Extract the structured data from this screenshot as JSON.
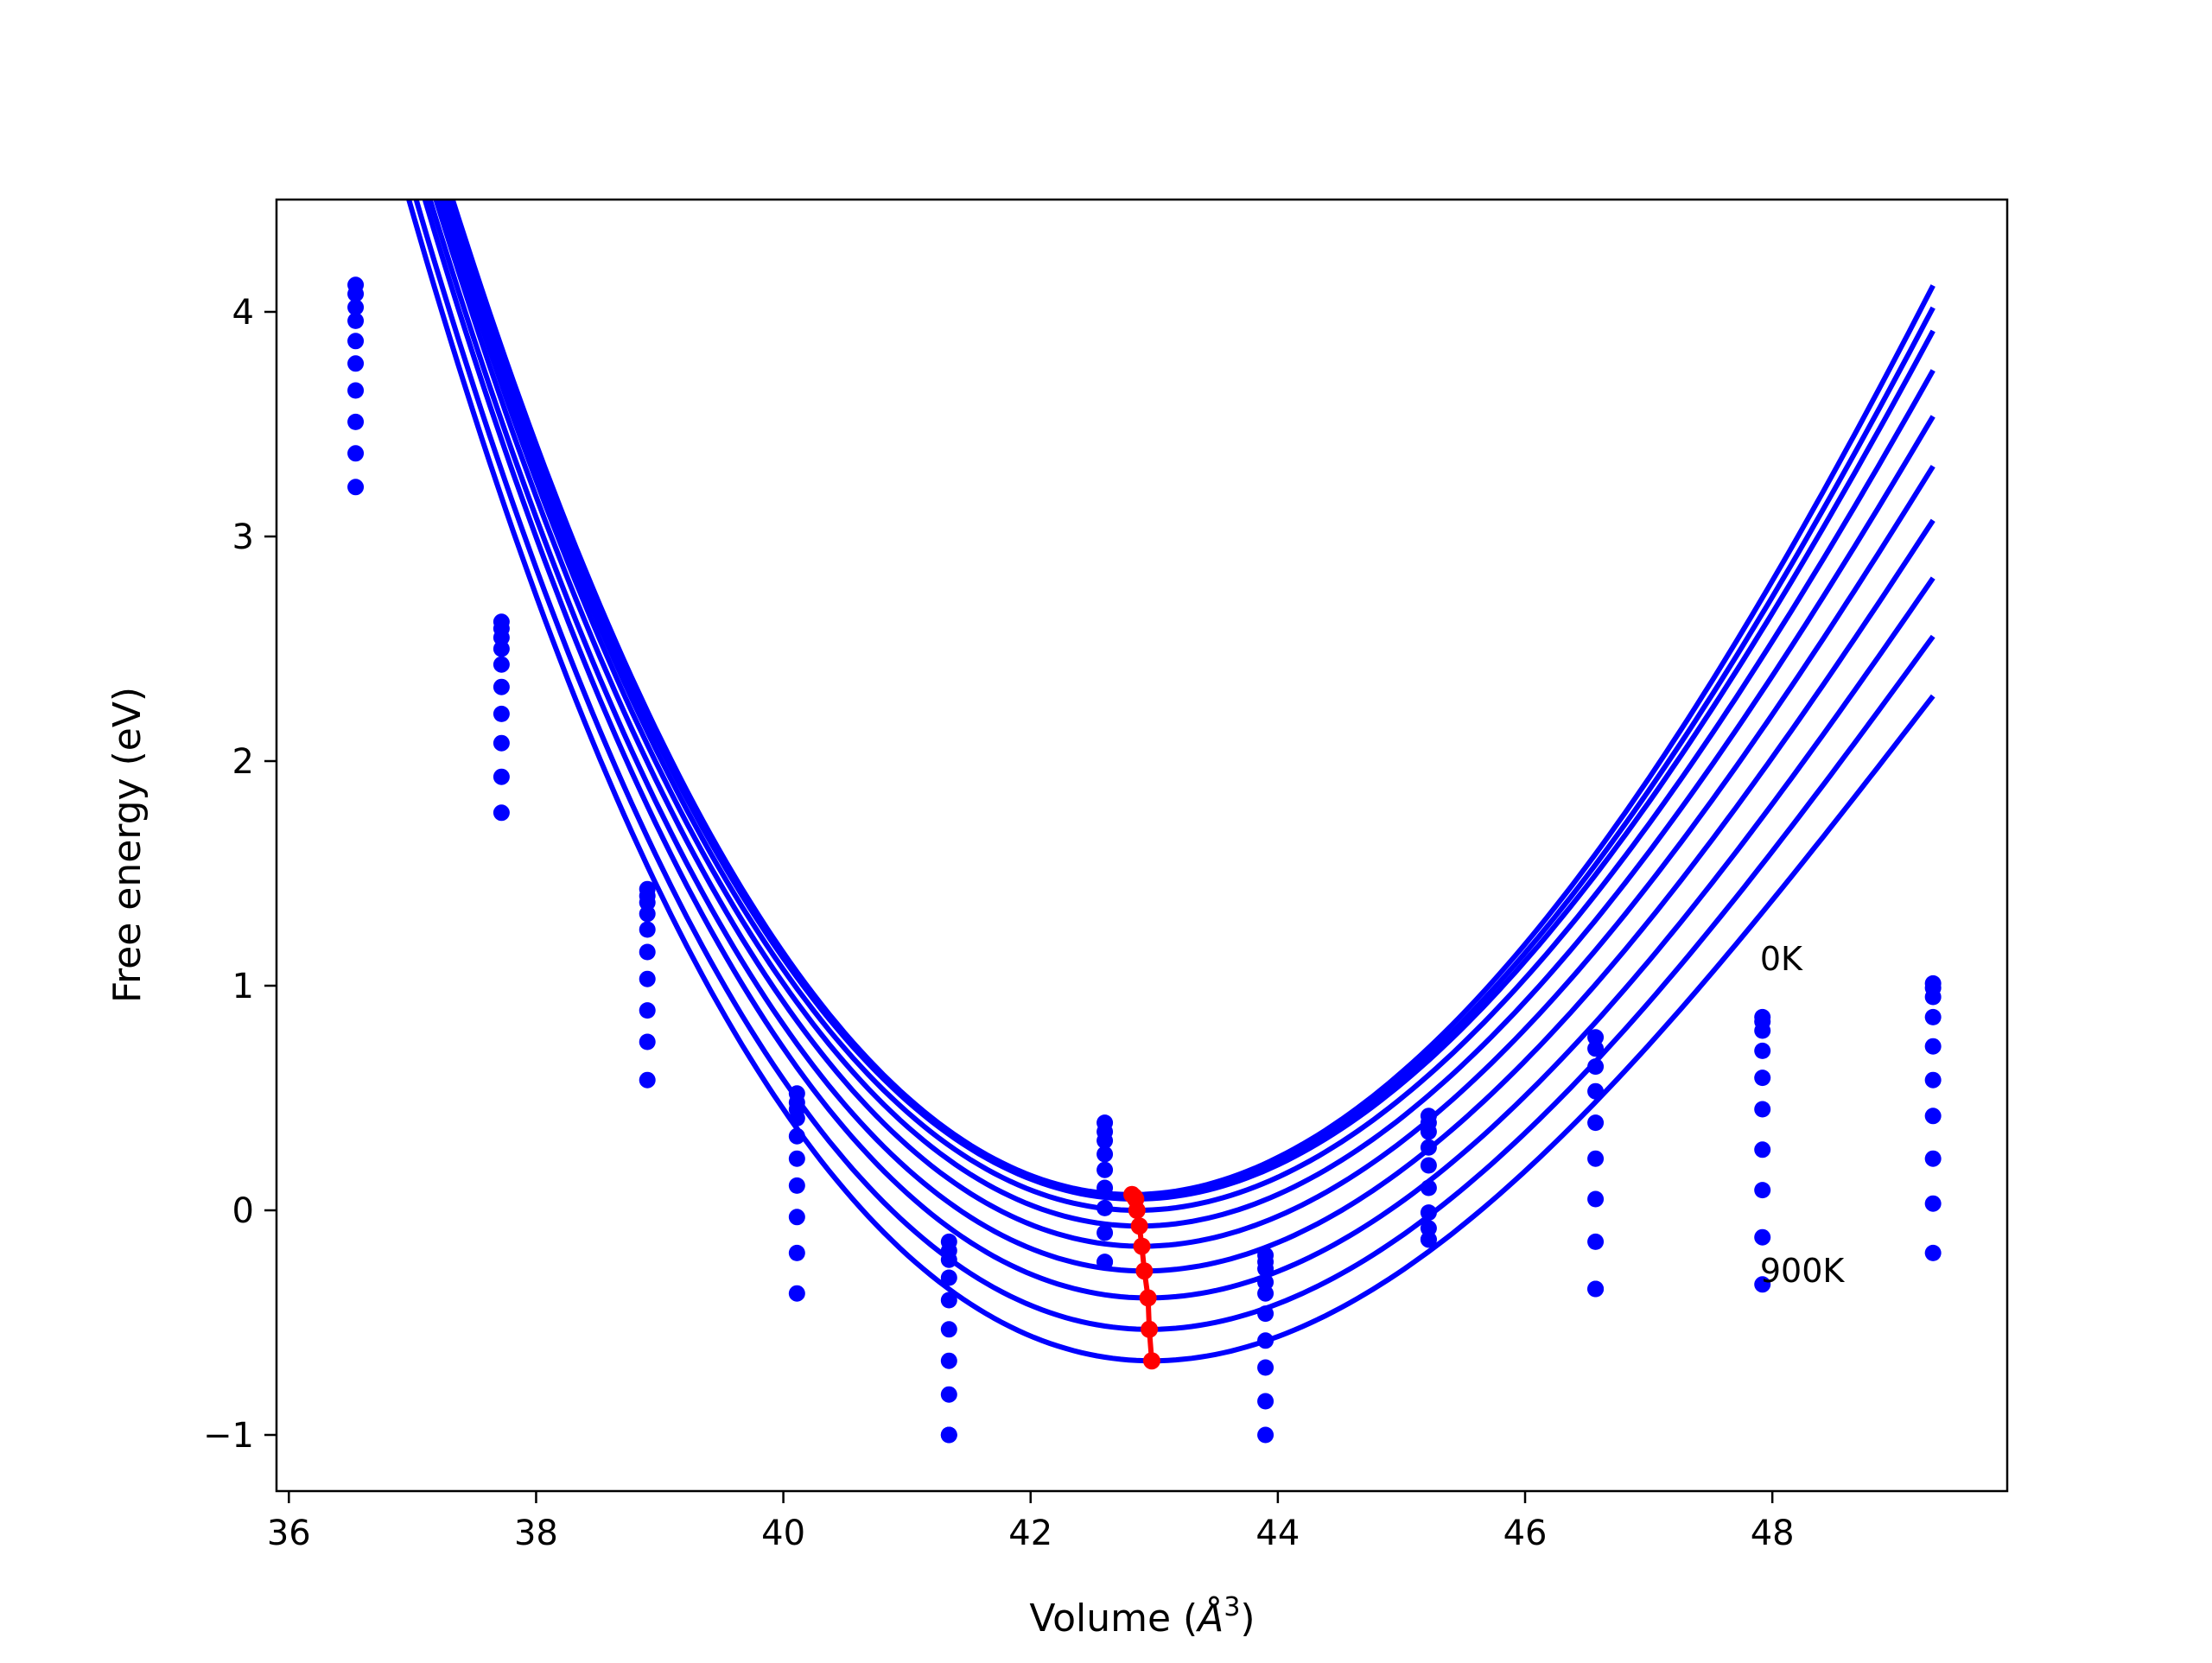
{
  "chart_data": {
    "type": "scatter",
    "title": "",
    "xlabel_text": "Volume (",
    "xlabel_unit": "Å",
    "xlabel_sup": "3",
    "xlabel_close": ")",
    "ylabel": "Free energy (eV)",
    "xlim": [
      35.9,
      49.9
    ],
    "ylim": [
      -1.25,
      4.5
    ],
    "x_ticks": [
      36,
      38,
      40,
      42,
      44,
      46,
      48
    ],
    "x_tick_labels": [
      "36",
      "38",
      "40",
      "42",
      "44",
      "46",
      "48"
    ],
    "y_ticks": [
      -1,
      0,
      1,
      2,
      3,
      4
    ],
    "y_tick_labels": [
      "−1",
      "0",
      "1",
      "2",
      "3",
      "4"
    ],
    "grid": false,
    "colors": {
      "curves": "#0000ff",
      "points": "#0000ff",
      "minima": "#ff0000"
    },
    "annotations": [
      {
        "text": "0K",
        "x": 47.9,
        "y": 1.07
      },
      {
        "text": "900K",
        "x": 47.9,
        "y": -0.32
      }
    ],
    "volumes": [
      36.54,
      37.72,
      38.9,
      40.11,
      41.34,
      42.6,
      43.9,
      45.22,
      46.57,
      47.92,
      49.3
    ],
    "series": [
      {
        "E": [
          4.12,
          2.62,
          1.43,
          0.52,
          -0.14,
          0.39,
          -0.2,
          0.42,
          0.77,
          0.86,
          1.01
        ],
        "V0": 42.82,
        "E0": 0.07,
        "a": 0.1236,
        "b": -0.0042,
        "c": 0.0
      },
      {
        "E": [
          4.08,
          2.59,
          1.4,
          0.48,
          -0.18,
          0.35,
          -0.23,
          0.39,
          0.72,
          0.84,
          0.99
        ],
        "V0": 42.84,
        "E0": 0.06,
        "a": 0.122,
        "b": -0.0042,
        "c": 0.0
      },
      {
        "E": [
          4.02,
          2.55,
          1.37,
          0.45,
          -0.22,
          0.31,
          -0.26,
          0.35,
          0.64,
          0.8,
          0.95
        ],
        "V0": 42.85,
        "E0": 0.05,
        "a": 0.12,
        "b": -0.0042,
        "c": 0.0
      },
      {
        "E": [
          3.96,
          2.5,
          1.32,
          0.41,
          -0.3,
          0.25,
          -0.32,
          0.28,
          0.53,
          0.71,
          0.86
        ],
        "V0": 42.86,
        "E0": 0.0,
        "a": 0.1185,
        "b": -0.0044,
        "c": 0.0
      },
      {
        "E": [
          3.87,
          2.43,
          1.25,
          0.33,
          -0.4,
          0.18,
          -0.37,
          0.2,
          0.39,
          0.59,
          0.73
        ],
        "V0": 42.88,
        "E0": -0.07,
        "a": 0.117,
        "b": -0.0046,
        "c": 0.0
      },
      {
        "E": [
          3.77,
          2.33,
          1.15,
          0.23,
          -0.53,
          0.1,
          -0.46,
          0.1,
          0.23,
          0.45,
          0.58
        ],
        "V0": 42.9,
        "E0": -0.16,
        "a": 0.1155,
        "b": -0.0048,
        "c": 0.0
      },
      {
        "E": [
          3.65,
          2.21,
          1.03,
          0.11,
          -0.67,
          0.01,
          -0.58,
          -0.01,
          0.05,
          0.27,
          0.42
        ],
        "V0": 42.92,
        "E0": -0.27,
        "a": 0.114,
        "b": -0.005,
        "c": 0.0
      },
      {
        "E": [
          3.51,
          2.08,
          0.89,
          -0.03,
          -0.82,
          -0.1,
          -0.7,
          -0.08,
          -0.14,
          0.09,
          0.23
        ],
        "V0": 42.95,
        "E0": -0.39,
        "a": 0.1125,
        "b": -0.0052,
        "c": 0.0
      },
      {
        "E": [
          3.37,
          1.93,
          0.75,
          -0.19,
          -1.0,
          -0.23,
          -0.85,
          -0.13,
          -0.35,
          -0.12,
          0.03
        ],
        "V0": 42.96,
        "E0": -0.53,
        "a": 0.111,
        "b": -0.0054,
        "c": 0.0
      },
      {
        "E": [
          3.22,
          1.77,
          0.58,
          -0.37,
          -1.0,
          -0.23,
          -1.0,
          -0.13,
          -0.35,
          -0.33,
          -0.19
        ],
        "V0": 42.98,
        "E0": -0.67,
        "a": 0.1095,
        "b": -0.0056,
        "c": 0.0
      }
    ],
    "minima_line": {
      "x": [
        42.82,
        42.84,
        42.85,
        42.86,
        42.88,
        42.9,
        42.92,
        42.95,
        42.96,
        42.98
      ],
      "y": [
        0.07,
        0.06,
        0.05,
        0.0,
        -0.07,
        -0.16,
        -0.27,
        -0.39,
        -0.53,
        -0.67
      ]
    }
  }
}
